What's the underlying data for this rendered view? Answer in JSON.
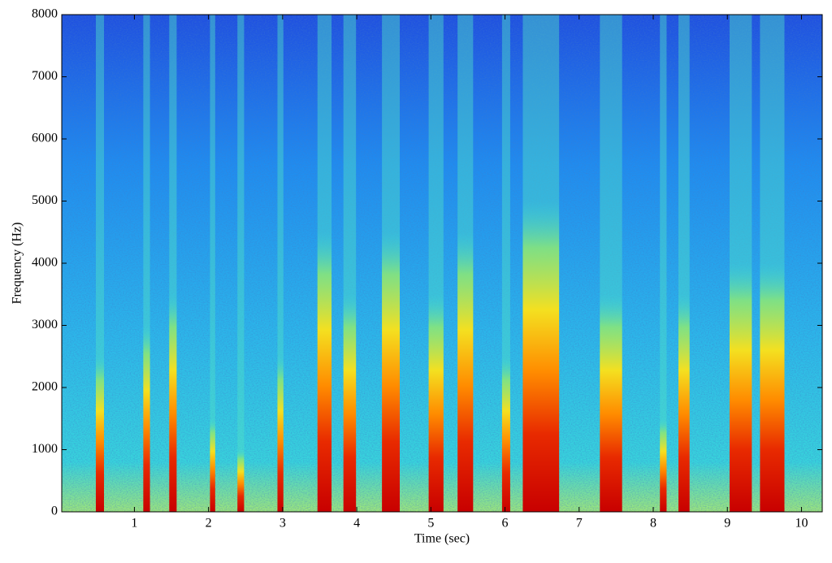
{
  "chart_data": {
    "type": "spectrogram",
    "xlabel": "Time (sec)",
    "ylabel": "Frequency (Hz)",
    "xlim": [
      0.02,
      10.28
    ],
    "ylim": [
      0,
      8000
    ],
    "xticks": [
      1,
      2,
      3,
      4,
      5,
      6,
      7,
      8,
      9,
      10
    ],
    "yticks": [
      0,
      1000,
      2000,
      3000,
      4000,
      5000,
      6000,
      7000,
      8000
    ],
    "onsets": [
      0.48,
      1.12,
      1.47,
      2.02,
      2.39,
      2.93,
      3.47,
      3.82,
      4.34,
      4.97,
      5.36,
      5.96,
      6.24,
      7.28,
      8.09,
      8.34,
      9.03,
      9.44
    ],
    "offsets": [
      0.59,
      1.21,
      1.57,
      2.09,
      2.48,
      3.01,
      3.66,
      3.99,
      4.58,
      5.17,
      5.57,
      6.07,
      6.73,
      7.58,
      8.18,
      8.49,
      9.33,
      9.77
    ],
    "extent": [
      2500,
      3000,
      3500,
      1500,
      1000,
      2500,
      4500,
      3500,
      4500,
      3500,
      4500,
      2500,
      5000,
      3500,
      1500,
      3500,
      4000,
      4000
    ]
  }
}
